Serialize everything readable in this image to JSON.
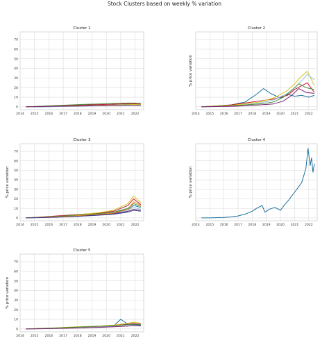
{
  "figure": {
    "title": "Stock Clusters based on weekly % variation",
    "colors": [
      "#1b6e9c",
      "#c8102e",
      "#d5c21a",
      "#8fc8d8",
      "#4b8b3b",
      "#7d1f6e",
      "#e08a1e",
      "#2e3a8c",
      "#a0522d",
      "#99b84a"
    ]
  },
  "chart_data": [
    {
      "type": "line",
      "title": "Cluster 1",
      "ylabel": "",
      "xlim": [
        2014,
        2022.6
      ],
      "ylim": [
        -3,
        78
      ],
      "xticks": [
        "2014",
        "2015",
        "2016",
        "2017",
        "2018",
        "2019",
        "2020",
        "2021",
        "2022"
      ],
      "yticks": [
        0,
        10,
        20,
        30,
        40,
        50,
        60,
        70
      ],
      "show_yticks": true,
      "grid": true,
      "series": [
        {
          "x": [
            2014.4,
            2015.5,
            2016.5,
            2017.5,
            2018.5,
            2019.5,
            2020.5,
            2021.5,
            2022.4
          ],
          "y": [
            0,
            0.3,
            0.6,
            0.9,
            1.2,
            1.5,
            2,
            2.5,
            2.2
          ]
        },
        {
          "x": [
            2014.4,
            2015.5,
            2016.5,
            2017.5,
            2018.5,
            2019.5,
            2020.5,
            2021.5,
            2022.4
          ],
          "y": [
            0,
            0.5,
            1,
            1.5,
            2,
            2.3,
            2.8,
            3.3,
            3
          ]
        },
        {
          "x": [
            2014.4,
            2015.5,
            2016.5,
            2017.5,
            2018.5,
            2019.5,
            2020.5,
            2021.5,
            2022.4
          ],
          "y": [
            0,
            0.2,
            0.4,
            0.8,
            1,
            1.4,
            1.8,
            2.2,
            2.6
          ]
        },
        {
          "x": [
            2014.4,
            2015.5,
            2016.5,
            2017.5,
            2018.5,
            2019.5,
            2020.5,
            2021.5,
            2022.4
          ],
          "y": [
            0,
            -0.3,
            0.2,
            0.5,
            0.7,
            1,
            1.3,
            1.6,
            1.4
          ]
        },
        {
          "x": [
            2014.4,
            2015.5,
            2016.5,
            2017.5,
            2018.5,
            2019.5,
            2020.5,
            2021.5,
            2022.4
          ],
          "y": [
            0,
            0.6,
            1.3,
            2,
            2.6,
            3,
            3.5,
            4,
            3.8
          ]
        },
        {
          "x": [
            2014.4,
            2015.5,
            2016.5,
            2017.5,
            2018.5,
            2019.5,
            2020.5,
            2021.5,
            2022.4
          ],
          "y": [
            0,
            0.3,
            0.5,
            0.7,
            0.9,
            1.1,
            1.3,
            1.5,
            1.7
          ]
        }
      ]
    },
    {
      "type": "line",
      "title": "Cluster 2",
      "ylabel": "% price variation",
      "xlim": [
        2014,
        2022.6
      ],
      "ylim": [
        -3,
        78
      ],
      "xticks": [
        "2014",
        "2015",
        "2016",
        "2017",
        "2018",
        "2019",
        "2020",
        "2021",
        "2022"
      ],
      "yticks": [],
      "show_yticks": false,
      "grid": true,
      "series": [
        {
          "x": [
            2014.4,
            2015.5,
            2016.5,
            2017.5,
            2018.3,
            2018.8,
            2019.3,
            2020,
            2020.5,
            2021,
            2021.5,
            2022,
            2022.4
          ],
          "y": [
            0,
            1,
            2,
            5,
            13,
            19,
            14,
            9,
            13,
            11,
            12,
            10,
            12
          ]
        },
        {
          "x": [
            2014.4,
            2015.5,
            2016.5,
            2017.5,
            2018.5,
            2019.5,
            2020.5,
            2021,
            2021.5,
            2021.9,
            2022.4
          ],
          "y": [
            0,
            1,
            2,
            4,
            6,
            8,
            12,
            18,
            22,
            25,
            15
          ]
        },
        {
          "x": [
            2014.4,
            2015.5,
            2016.5,
            2017.5,
            2018.5,
            2019.5,
            2020.5,
            2021,
            2021.5,
            2021.9,
            2022.4
          ],
          "y": [
            0,
            1,
            1.5,
            3,
            5,
            9,
            17,
            24,
            32,
            37,
            22
          ]
        },
        {
          "x": [
            2014.4,
            2015.5,
            2016.5,
            2017.5,
            2018.5,
            2019.5,
            2020.5,
            2021,
            2021.5,
            2021.9,
            2022.4
          ],
          "y": [
            0,
            0.5,
            1,
            2,
            4,
            7,
            14,
            20,
            27,
            34,
            28
          ]
        },
        {
          "x": [
            2014.4,
            2015.5,
            2016.5,
            2017.5,
            2018.5,
            2019.5,
            2020.2,
            2020.8,
            2021.3,
            2021.8,
            2022.4
          ],
          "y": [
            0,
            0.5,
            1,
            2,
            3,
            5,
            10,
            17,
            24,
            20,
            18
          ]
        },
        {
          "x": [
            2014.4,
            2015.5,
            2016.5,
            2017.5,
            2018.5,
            2019.5,
            2020.2,
            2020.8,
            2021.3,
            2021.8,
            2022.4
          ],
          "y": [
            0,
            0.3,
            0.5,
            1,
            2,
            3,
            6,
            12,
            19,
            15,
            14
          ]
        }
      ]
    },
    {
      "type": "line",
      "title": "Cluster 3",
      "ylabel": "% price variation",
      "xlim": [
        2014,
        2022.6
      ],
      "ylim": [
        -3,
        78
      ],
      "xticks": [
        "2014",
        "2015",
        "2016",
        "2017",
        "2018",
        "2019",
        "2020",
        "2021",
        "2022"
      ],
      "yticks": [
        0,
        10,
        20,
        30,
        40,
        50,
        60,
        70
      ],
      "show_yticks": true,
      "grid": true,
      "series": [
        {
          "x": [
            2014.4,
            2015.5,
            2016.5,
            2017.5,
            2018.5,
            2019.5,
            2020.5,
            2021.5,
            2021.9,
            2022.4
          ],
          "y": [
            0,
            0.5,
            1,
            2,
            3,
            4,
            6,
            9,
            13,
            11
          ]
        },
        {
          "x": [
            2014.4,
            2015.5,
            2016.5,
            2017.5,
            2018.5,
            2019.5,
            2020.5,
            2021.5,
            2021.9,
            2022.4
          ],
          "y": [
            0,
            1,
            2,
            3,
            4,
            5,
            7,
            13,
            20,
            14
          ]
        },
        {
          "x": [
            2014.4,
            2015.5,
            2016.5,
            2017.5,
            2018.5,
            2019.5,
            2020.5,
            2021.5,
            2021.9,
            2022.4
          ],
          "y": [
            0,
            0.8,
            1.5,
            2.5,
            4,
            5.5,
            8,
            15,
            23,
            16
          ]
        },
        {
          "x": [
            2014.4,
            2015.5,
            2016.5,
            2017.5,
            2018.5,
            2019.5,
            2020.5,
            2021.5,
            2021.9,
            2022.4
          ],
          "y": [
            0,
            0.6,
            1.2,
            2,
            3,
            4,
            5,
            8,
            11,
            9
          ]
        },
        {
          "x": [
            2014.4,
            2015.5,
            2016.5,
            2017.5,
            2018.5,
            2019.5,
            2020.5,
            2021.5,
            2021.9,
            2022.4
          ],
          "y": [
            0,
            0.7,
            1.5,
            2.5,
            3.5,
            4.5,
            6,
            10,
            15,
            12
          ]
        },
        {
          "x": [
            2014.4,
            2015.5,
            2016.5,
            2017.5,
            2018.5,
            2019.5,
            2020.5,
            2021.5,
            2021.9,
            2022.4
          ],
          "y": [
            0,
            0.4,
            0.8,
            1.5,
            2.5,
            3.5,
            4.5,
            7,
            9,
            8
          ]
        },
        {
          "x": [
            2014.4,
            2015.5,
            2016.5,
            2017.5,
            2018.5,
            2019.5,
            2020.5,
            2021.5,
            2021.9,
            2022.4
          ],
          "y": [
            0,
            0.5,
            1.1,
            1.8,
            2.8,
            3.8,
            5,
            9,
            17,
            13
          ]
        },
        {
          "x": [
            2014.4,
            2015.5,
            2016.5,
            2017.5,
            2018.5,
            2019.5,
            2020.5,
            2021.5,
            2021.9,
            2022.4
          ],
          "y": [
            0,
            0.3,
            0.7,
            1.2,
            2,
            2.8,
            3.8,
            6,
            8,
            7
          ]
        }
      ]
    },
    {
      "type": "line",
      "title": "Cluster 4",
      "ylabel": "% price variation",
      "xlim": [
        2014,
        2022.6
      ],
      "ylim": [
        -3,
        78
      ],
      "xticks": [
        "2014",
        "2015",
        "2016",
        "2017",
        "2018",
        "2019",
        "2020",
        "2021",
        "2022"
      ],
      "yticks": [],
      "show_yticks": false,
      "grid": true,
      "series": [
        {
          "x": [
            2014.4,
            2015,
            2015.5,
            2016,
            2016.5,
            2017,
            2017.5,
            2018,
            2018.3,
            2018.7,
            2018.9,
            2019.2,
            2019.6,
            2020,
            2020.3,
            2020.6,
            2020.9,
            2021.2,
            2021.5,
            2021.8,
            2021.95,
            2022.1,
            2022.2,
            2022.3,
            2022.4
          ],
          "y": [
            0,
            0,
            0.3,
            0.5,
            1,
            2,
            4,
            7,
            10,
            13,
            6,
            9,
            11,
            8,
            14,
            19,
            25,
            31,
            37,
            52,
            73,
            55,
            63,
            48,
            57
          ]
        }
      ]
    },
    {
      "type": "line",
      "title": "Cluster 5",
      "ylabel": "% price variation",
      "xlim": [
        2014,
        2022.6
      ],
      "ylim": [
        -3,
        78
      ],
      "xticks": [
        "2014",
        "2015",
        "2016",
        "2017",
        "2018",
        "2019",
        "2020",
        "2021",
        "2022"
      ],
      "yticks": [
        0,
        10,
        20,
        30,
        40,
        50,
        60,
        70
      ],
      "show_yticks": true,
      "grid": true,
      "series": [
        {
          "x": [
            2014.4,
            2015.5,
            2016.5,
            2017.5,
            2018.5,
            2019.5,
            2020.5,
            2021,
            2021.5,
            2022.4
          ],
          "y": [
            0,
            0.5,
            1,
            1.5,
            2,
            2.5,
            3,
            10,
            5,
            4
          ]
        },
        {
          "x": [
            2014.4,
            2015.5,
            2016.5,
            2017.5,
            2018.5,
            2019.5,
            2020.5,
            2021.5,
            2021.9,
            2022.4
          ],
          "y": [
            0,
            0.4,
            0.8,
            1.2,
            1.8,
            2.5,
            3.5,
            5,
            6,
            5
          ]
        },
        {
          "x": [
            2014.4,
            2015.5,
            2016.5,
            2017.5,
            2018.5,
            2019.5,
            2020.5,
            2021.5,
            2021.9,
            2022.4
          ],
          "y": [
            0,
            0.6,
            1.2,
            2,
            2.5,
            3,
            4,
            6,
            7,
            6
          ]
        },
        {
          "x": [
            2014.4,
            2015.5,
            2016.5,
            2017.5,
            2018.5,
            2019.5,
            2020.5,
            2021.5,
            2021.9,
            2022.4
          ],
          "y": [
            0,
            0.3,
            0.6,
            1,
            1.5,
            2,
            2.5,
            3.5,
            4,
            3
          ]
        },
        {
          "x": [
            2014.4,
            2015.5,
            2016.5,
            2017.5,
            2018.5,
            2019.5,
            2020.5,
            2021.5,
            2021.9,
            2022.4
          ],
          "y": [
            0,
            0.5,
            1,
            1.6,
            2.2,
            2.8,
            3.4,
            4.5,
            5,
            4.5
          ]
        },
        {
          "x": [
            2014.4,
            2015.5,
            2016.5,
            2017.5,
            2018.5,
            2019.5,
            2020.5,
            2021.5,
            2021.9,
            2022.4
          ],
          "y": [
            0,
            0.2,
            0.5,
            0.8,
            1.2,
            1.6,
            2.2,
            3,
            3.5,
            3.2
          ]
        }
      ]
    }
  ]
}
